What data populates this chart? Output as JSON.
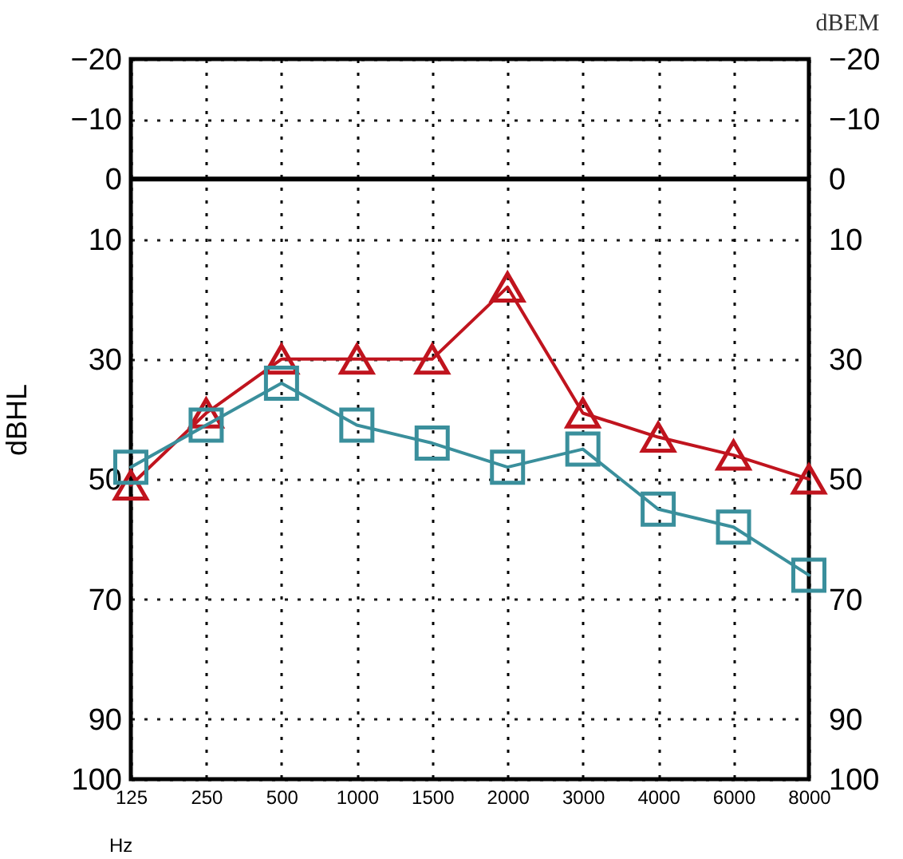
{
  "chart_data": {
    "type": "line",
    "categories": [
      "125",
      "250",
      "500",
      "1000",
      "1500",
      "2000",
      "3000",
      "4000",
      "6000",
      "8000"
    ],
    "xlabel": "Hz",
    "ylabel": "dBHL",
    "annotations": [
      "dBEM"
    ],
    "series": [
      {
        "color": "#c0141e",
        "marker": "triangle",
        "values": [
          51,
          39,
          30,
          30,
          30,
          18,
          39,
          43,
          46,
          50
        ]
      },
      {
        "color": "#3a8f9c",
        "marker": "square",
        "values": [
          48,
          41,
          34,
          41,
          44,
          48,
          45,
          55,
          58,
          66
        ]
      }
    ],
    "ylim": [
      100,
      -20
    ],
    "yticks": [
      -20,
      -10,
      0,
      10,
      30,
      50,
      70,
      90,
      100
    ],
    "y2lim": [
      100,
      -20
    ],
    "y2ticks": [
      -20,
      -10,
      0,
      10,
      30,
      50,
      70,
      90,
      100
    ],
    "ref_lines": [
      {
        "axis": "y2",
        "value": 0,
        "color": "#000000"
      }
    ],
    "grid": true,
    "line_style": "solid"
  }
}
